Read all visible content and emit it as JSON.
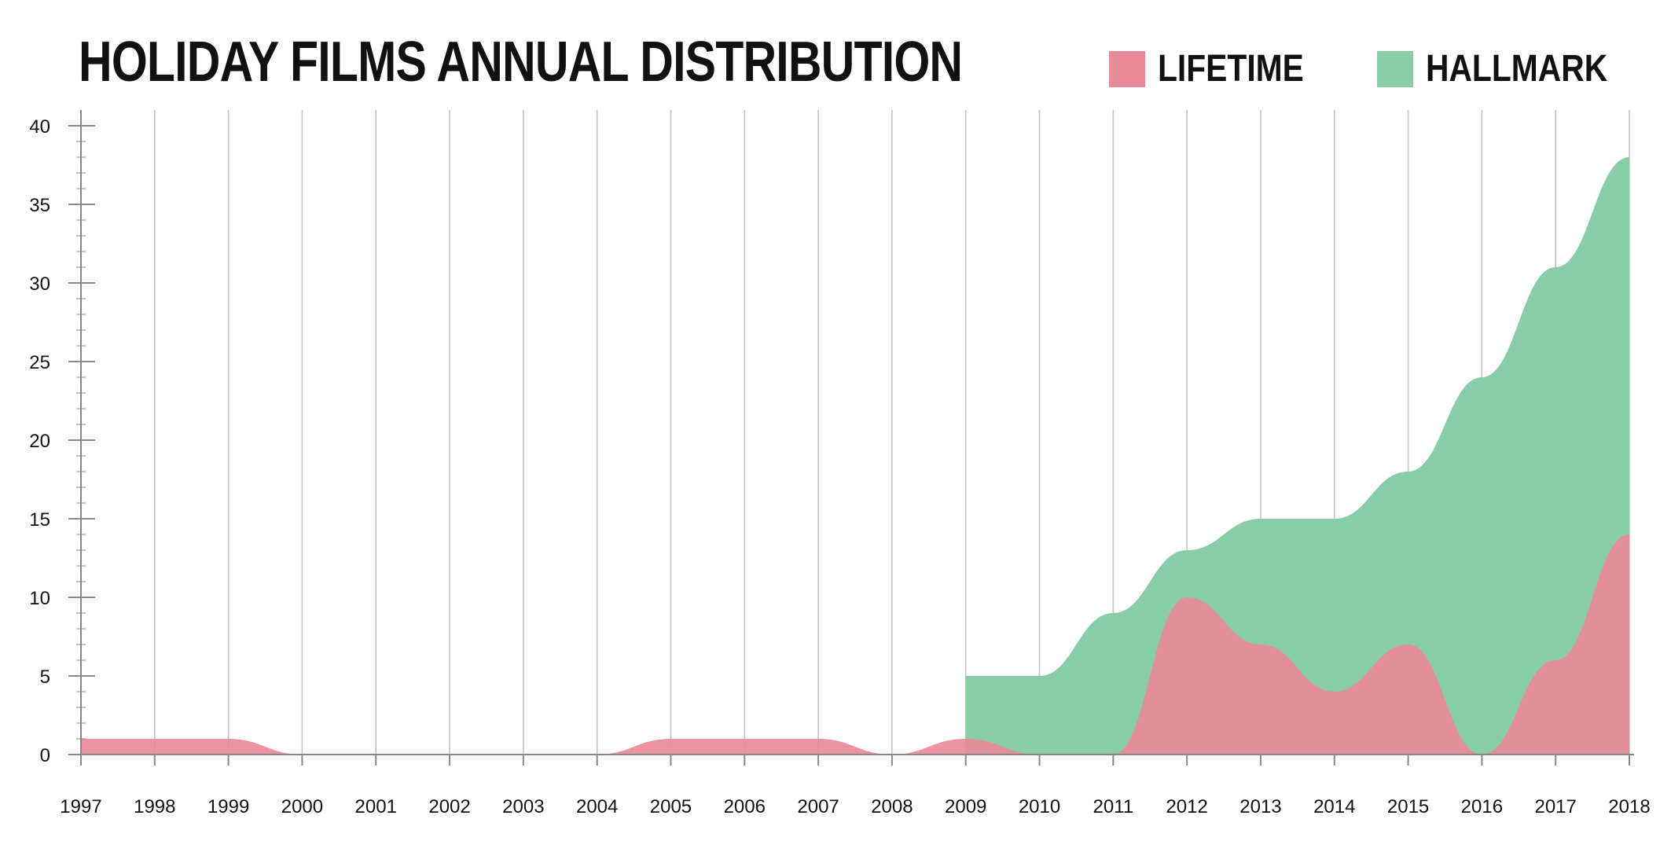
{
  "chart_data": {
    "type": "area",
    "title": "HOLIDAY FILMS ANNUAL DISTRIBUTION",
    "categories": [
      "1997",
      "1998",
      "1999",
      "2000",
      "2001",
      "2002",
      "2003",
      "2004",
      "2005",
      "2006",
      "2007",
      "2008",
      "2009",
      "2010",
      "2011",
      "2012",
      "2013",
      "2014",
      "2015",
      "2016",
      "2017",
      "2018"
    ],
    "series": [
      {
        "name": "LIFETIME",
        "color": "#E98A98",
        "values": [
          1,
          1,
          1,
          0,
          0,
          0,
          0,
          0,
          1,
          1,
          1,
          0,
          1,
          0,
          0,
          10,
          7,
          4,
          7,
          0,
          6,
          14
        ]
      },
      {
        "name": "HALLMARK",
        "color": "#88CDA6",
        "values": [
          0,
          0,
          0,
          0,
          0,
          0,
          0,
          0,
          0,
          0,
          0,
          0,
          5,
          5,
          9,
          13,
          15,
          15,
          18,
          24,
          31,
          38
        ],
        "start_index": 12
      }
    ],
    "yticks": [
      0,
      5,
      10,
      15,
      20,
      25,
      30,
      35,
      40
    ],
    "ylim": [
      0,
      40
    ],
    "xlabel": "",
    "ylabel": "",
    "grid": true,
    "legend": "top-right"
  }
}
